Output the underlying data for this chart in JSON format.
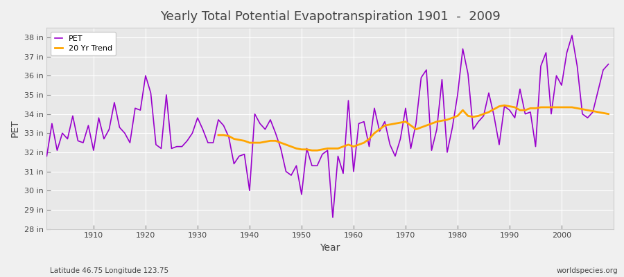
{
  "title": "Yearly Total Potential Evapotranspiration 1901  -  2009",
  "xlabel": "Year",
  "ylabel": "PET",
  "subtitle_left": "Latitude 46.75 Longitude 123.75",
  "subtitle_right": "worldspecies.org",
  "pet_color": "#9900CC",
  "trend_color": "#FFA500",
  "background_color": "#F0F0F0",
  "plot_bg_color": "#E8E8E8",
  "grid_color": "#FFFFFF",
  "ylim_min": 28,
  "ylim_max": 38.5,
  "yticks": [
    28,
    29,
    30,
    31,
    32,
    33,
    34,
    35,
    36,
    37,
    38
  ],
  "ytick_labels": [
    "28 in",
    "29 in",
    "30 in",
    "31 in",
    "32 in",
    "33 in",
    "34 in",
    "35 in",
    "36 in",
    "37 in",
    "38 in"
  ],
  "years": [
    1901,
    1902,
    1903,
    1904,
    1905,
    1906,
    1907,
    1908,
    1909,
    1910,
    1911,
    1912,
    1913,
    1914,
    1915,
    1916,
    1917,
    1918,
    1919,
    1920,
    1921,
    1922,
    1923,
    1924,
    1925,
    1926,
    1927,
    1928,
    1929,
    1930,
    1931,
    1932,
    1933,
    1934,
    1935,
    1936,
    1937,
    1938,
    1939,
    1940,
    1941,
    1942,
    1943,
    1944,
    1945,
    1946,
    1947,
    1948,
    1949,
    1950,
    1951,
    1952,
    1953,
    1954,
    1955,
    1956,
    1957,
    1958,
    1959,
    1960,
    1961,
    1962,
    1963,
    1964,
    1965,
    1966,
    1967,
    1968,
    1969,
    1970,
    1971,
    1972,
    1973,
    1974,
    1975,
    1976,
    1977,
    1978,
    1979,
    1980,
    1981,
    1982,
    1983,
    1984,
    1985,
    1986,
    1987,
    1988,
    1989,
    1990,
    1991,
    1992,
    1993,
    1994,
    1995,
    1996,
    1997,
    1998,
    1999,
    2000,
    2001,
    2002,
    2003,
    2004,
    2005,
    2006,
    2007,
    2008,
    2009
  ],
  "pet_values": [
    31.8,
    33.5,
    32.1,
    33.0,
    32.7,
    33.9,
    32.6,
    32.5,
    33.4,
    32.1,
    33.8,
    32.7,
    33.2,
    34.6,
    33.3,
    33.0,
    32.5,
    34.3,
    34.2,
    36.0,
    35.1,
    32.4,
    32.2,
    35.0,
    32.2,
    32.3,
    32.3,
    32.6,
    33.0,
    33.8,
    33.2,
    32.5,
    32.5,
    33.7,
    33.4,
    32.8,
    31.4,
    31.8,
    31.9,
    30.0,
    34.0,
    33.5,
    33.2,
    33.7,
    33.0,
    32.2,
    31.0,
    30.8,
    31.3,
    29.8,
    32.2,
    31.3,
    31.3,
    31.9,
    32.1,
    28.6,
    31.8,
    30.9,
    34.7,
    31.0,
    33.5,
    33.6,
    32.3,
    34.3,
    33.1,
    33.6,
    32.4,
    31.8,
    32.7,
    34.3,
    32.2,
    33.5,
    35.9,
    36.3,
    32.1,
    33.2,
    35.8,
    32.0,
    33.3,
    35.0,
    37.4,
    36.1,
    33.2,
    33.6,
    33.9,
    35.1,
    33.9,
    32.4,
    34.4,
    34.2,
    33.8,
    35.3,
    34.0,
    34.1,
    32.3,
    36.5,
    37.2,
    34.0,
    36.0,
    35.5,
    37.2,
    38.1,
    36.5,
    34.0,
    33.8,
    34.1,
    35.2,
    36.3,
    36.6
  ],
  "trend_years": [
    1934,
    1935,
    1936,
    1937,
    1938,
    1939,
    1940,
    1941,
    1942,
    1943,
    1944,
    1945,
    1946,
    1947,
    1948,
    1949,
    1950,
    1951,
    1952,
    1953,
    1954,
    1955,
    1956,
    1957,
    1958,
    1959,
    1960,
    1961,
    1962,
    1963,
    1964,
    1965,
    1966,
    1967,
    1968,
    1969,
    1970,
    1971,
    1972,
    1973,
    1974,
    1975,
    1976,
    1977,
    1978,
    1979,
    1980,
    1981,
    1982,
    1983,
    1984,
    1985,
    1986,
    1987,
    1988,
    1989,
    1990,
    1991,
    1992,
    1993,
    1994,
    1995,
    1996,
    1997,
    1998,
    1999,
    2000,
    2001,
    2002,
    2003,
    2004,
    2005,
    2006,
    2007,
    2008,
    2009
  ],
  "trend_values": [
    32.9,
    32.9,
    32.85,
    32.7,
    32.65,
    32.6,
    32.5,
    32.5,
    32.5,
    32.55,
    32.6,
    32.6,
    32.5,
    32.4,
    32.3,
    32.2,
    32.15,
    32.15,
    32.1,
    32.1,
    32.15,
    32.2,
    32.2,
    32.2,
    32.3,
    32.4,
    32.3,
    32.4,
    32.5,
    32.7,
    33.0,
    33.2,
    33.4,
    33.45,
    33.5,
    33.55,
    33.6,
    33.4,
    33.2,
    33.3,
    33.4,
    33.5,
    33.6,
    33.65,
    33.7,
    33.8,
    33.9,
    34.2,
    33.9,
    33.85,
    33.9,
    34.0,
    34.1,
    34.25,
    34.4,
    34.45,
    34.4,
    34.35,
    34.2,
    34.2,
    34.3,
    34.3,
    34.35,
    34.35,
    34.35,
    34.35,
    34.35,
    34.35,
    34.35,
    34.3,
    34.25,
    34.2,
    34.15,
    34.1,
    34.05,
    34.0
  ],
  "text_color": "#444444",
  "xtick_positions": [
    1910,
    1920,
    1930,
    1940,
    1950,
    1960,
    1970,
    1980,
    1990,
    2000
  ]
}
